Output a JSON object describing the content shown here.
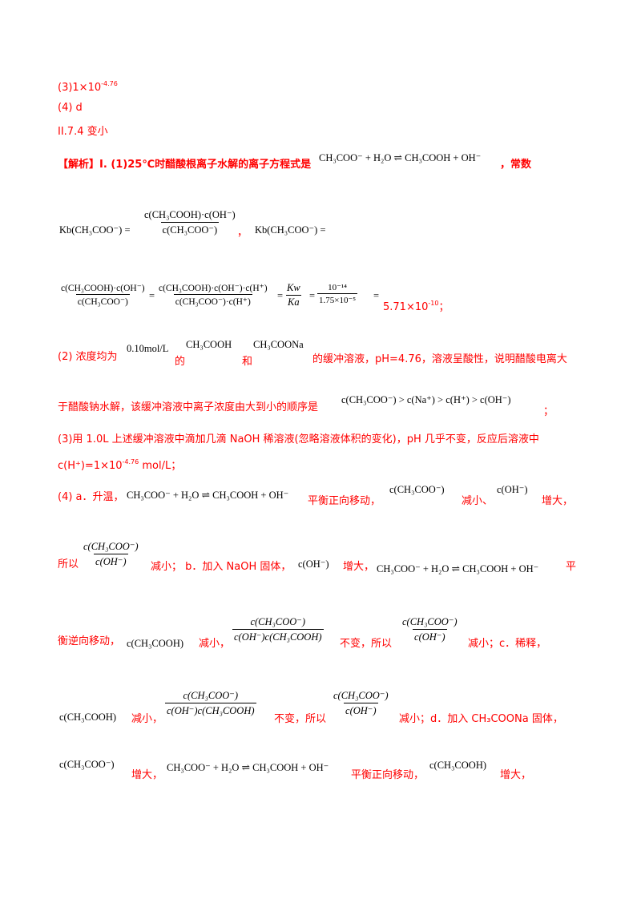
{
  "lines": {
    "a3": "(3)1×10",
    "a3_exp": "-4.76",
    "a4": "(4) d",
    "a5": "II.7.4    变小",
    "jiexi_label": "【解析】",
    "l1_text": "I. (1)25℃时醋酸根离子水解的离子方程式是",
    "l1_eq": "CH₃COO⁻ + H₂O ⇌ CH₃COOH + OH⁻",
    "l1_tail": "，常数",
    "kb_label": "Kb(CH₃COO⁻) =",
    "kb_num": "c(CH₃COOH)·c(OH⁻)",
    "kb_den": "c(CH₃COO⁻)",
    "kb_comma": "，",
    "kb2_label": "Kb(CH₃COO⁻) =",
    "calc_num1": "c(CH₃COOH)·c(OH⁻)",
    "calc_den1": "c(CH₃COO⁻)",
    "calc_num2": "c(CH₃COOH)·c(OH⁻)·c(H⁺)",
    "calc_den2": "c(CH₃COO⁻)·c(H⁺)",
    "calc_num3": "Kw",
    "calc_den3": "Ka",
    "calc_num4": "10⁻¹⁴",
    "calc_den4": "1.75×10⁻⁵",
    "calc_result": "5.71×10",
    "calc_result_exp": "-10",
    "calc_tail": "；",
    "p2_a": "(2)  浓度均为",
    "p2_conc": "0.10mol/L",
    "p2_de": "的",
    "p2_acid": "CH₃COOH",
    "p2_he": "和",
    "p2_salt": "CH₃COONa",
    "p2_b": "的缓冲溶液，pH=4.76，溶液呈酸性，说明醋酸电离大",
    "p2_c": "于醋酸钠水解，该缓冲溶液中离子浓度由大到小的顺序是",
    "p2_order": "c(CH₃COO⁻) > c(Na⁺) > c(H⁺) > c(OH⁻)",
    "p2_end": "；",
    "p3_a": "(3)用 1.0L 上述缓冲溶液中滴加几滴 NaOH 稀溶液(忽略溶液体积的变化)，pH 几乎不变，反应后溶液中",
    "p3_b": "c(H⁺)=1×10",
    "p3_b_exp": "-4.76",
    "p3_b_unit": " mol/L；",
    "p4_a": "(4) a．升温，",
    "p4_eq": "CH₃COO⁻ + H₂O ⇌ CH₃COOH + OH⁻",
    "p4_b": "平衡正向移动，",
    "p4_c1": "c(CH₃COO⁻)",
    "p4_d": "减小、",
    "p4_c2": "c(OH⁻)",
    "p4_e": "增大，",
    "p5_a": "所以",
    "p5_num": "c(CH₃COO⁻)",
    "p5_den": "c(OH⁻)",
    "p5_b": "减小；  b．加入 NaOH 固体，",
    "p5_c": "c(OH⁻)",
    "p5_d": "增大，",
    "p5_eq": "CH₃COO⁻ + H₂O ⇌ CH₃COOH + OH⁻",
    "p5_e": "平",
    "p6_a": "衡逆向移动，",
    "p6_c": "c(CH₃COOH)",
    "p6_b": "减小，",
    "p6_num": "c(CH₃COO⁻)",
    "p6_den": "c(OH⁻)c(CH₃COOH)",
    "p6_d": "不变，所以",
    "p6_num2": "c(CH₃COO⁻)",
    "p6_den2": "c(OH⁻)",
    "p6_e": "减小；c．稀释，",
    "p7_c": "c(CH₃COOH)",
    "p7_a": "减小，",
    "p7_num": "c(CH₃COO⁻)",
    "p7_den": "c(OH⁻)c(CH₃COOH)",
    "p7_b": "不变，所以",
    "p7_num2": "c(CH₃COO⁻)",
    "p7_den2": "c(OH⁻)",
    "p7_d": "减小；d．加入 CH₃COONa 固体，",
    "p8_c": "c(CH₃COO⁻)",
    "p8_a": "增大，",
    "p8_eq": "CH₃COO⁻ + H₂O ⇌ CH₃COOH + OH⁻",
    "p8_b": "平衡正向移动，",
    "p8_c2": "c(CH₃COOH)",
    "p8_d": "增大，"
  }
}
